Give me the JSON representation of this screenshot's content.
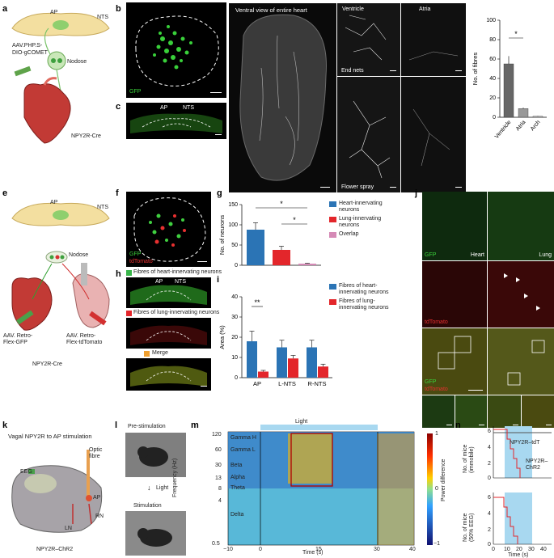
{
  "panel_labels": {
    "a": "a",
    "b": "b",
    "c": "c",
    "d": "d",
    "e": "e",
    "f": "f",
    "g": "g",
    "h": "h",
    "i": "i",
    "j": "j",
    "k": "k",
    "l": "l",
    "m": "m",
    "n": "n"
  },
  "a": {
    "ap": "AP",
    "nts": "NTS",
    "virus": "AAV.PHP.S-\nDIO-gCOMET",
    "nodose": "Nodose",
    "mouse": "NPY2R-Cre"
  },
  "b": {
    "channel": "GFP"
  },
  "c": {
    "ap": "AP",
    "nts": "NTS"
  },
  "d": {
    "title_whole": "Ventral view of entire heart",
    "title_ventricle": "Ventricle",
    "title_atria": "Atria",
    "end_nets": "End nets",
    "flower_spray": "Flower spray"
  },
  "e": {
    "ap": "AP",
    "nts": "NTS",
    "nodose": "Nodose",
    "virus_green": "AAV. Retro-\nFlex-GFP",
    "virus_red": "AAV. Retro-\nFlex-tdTomato",
    "mouse": "NPY2R-Cre"
  },
  "f": {
    "ch1": "GFP",
    "ch2": "tdTomato"
  },
  "h": {
    "heart": "Fibres of heart-innervating neurons",
    "lung": "Fibres of lung-innervating neurons",
    "merge": "Merge",
    "ap": "AP",
    "nts": "NTS"
  },
  "j": {
    "gfp": "GFP",
    "heart": "Heart",
    "lung": "Lung",
    "td": "tdTomato",
    "gfp2": "GFP",
    "td2": "tdTomato"
  },
  "k": {
    "title": "Vagal NPY2R to AP stimulation",
    "eeg": "EEG",
    "fibre": "Optic\nfibre",
    "ap": "AP",
    "ln": "LN",
    "rn": "RN",
    "mouse": "NPY2R–ChR2"
  },
  "l": {
    "pre": "Pre-stimulation",
    "light": "Light",
    "stim": "Stimulation"
  },
  "m": {
    "light": "Light",
    "ylabel": "Frequency (Hz)",
    "xlabel": "Time (s)",
    "cbar_label": "Power difference",
    "bands": [
      "Gamma H",
      "Gamma L",
      "Beta",
      "Alpha",
      "Theta",
      "Delta"
    ],
    "yticks": [
      "120",
      "60",
      "30",
      "13",
      "8",
      "4",
      "0.5"
    ],
    "xticks": [
      "−10",
      "0",
      "15",
      "30",
      "40"
    ],
    "cticks": [
      "1",
      "0",
      "−1"
    ]
  },
  "n": {
    "ylabel_top": "No. of mice\n(immobile)",
    "ylabel_bottom": "No. of mice\n(50% EEG)",
    "xlabel": "Time (s)",
    "leg1": "NPY2R–tdT",
    "leg2": "NPY2R–\nChR2",
    "yticks": [
      "0",
      "2",
      "4",
      "6"
    ],
    "xticks": [
      "0",
      "10",
      "20",
      "30",
      "40"
    ]
  },
  "colors": {
    "heart": "#2b74b5",
    "lung": "#e3262b",
    "overlap": "#d58ab6",
    "light": "#a8d8f0",
    "grey": "#555555",
    "merge": "#f0a030"
  },
  "chart_data": [
    {
      "type": "bar",
      "panel": "d",
      "categories": [
        "Ventricle",
        "Atria",
        "Arch"
      ],
      "values": [
        55,
        9,
        1
      ],
      "errors": [
        8,
        1,
        0.5
      ],
      "ylabel": "No. of fibres",
      "ylim": [
        0,
        100
      ],
      "yticks": [
        "0",
        "20",
        "40",
        "60",
        "80",
        "100"
      ],
      "significance": "*"
    },
    {
      "type": "bar",
      "panel": "g",
      "categories": [
        "Heart-innervating neurons",
        "Lung-innervating neurons",
        "Overlap"
      ],
      "values": [
        88,
        38,
        4
      ],
      "errors": [
        17,
        9,
        1
      ],
      "ylabel": "No. of neurons",
      "ylim": [
        0,
        150
      ],
      "yticks": [
        "0",
        "50",
        "100",
        "150"
      ],
      "legend": [
        "Heart-innervating\nneurons",
        "Lung-innervating\nneurons",
        "Overlap"
      ],
      "significance": [
        "*",
        "*"
      ]
    },
    {
      "type": "bar",
      "panel": "i",
      "categories": [
        "AP",
        "L-NTS",
        "R-NTS"
      ],
      "series": [
        {
          "name": "Fibres of heart-\ninnervating neurons",
          "values": [
            18,
            15,
            15
          ],
          "errors": [
            5,
            3.5,
            3.5
          ]
        },
        {
          "name": "Fibres of lung-\ninnervating neurons",
          "values": [
            3,
            9.5,
            5.5
          ],
          "errors": [
            0.6,
            1.5,
            1.2
          ]
        }
      ],
      "ylabel": "Area (%)",
      "ylim": [
        0,
        40
      ],
      "yticks": [
        "0",
        "10",
        "20",
        "30",
        "40"
      ],
      "significance": "**"
    }
  ]
}
